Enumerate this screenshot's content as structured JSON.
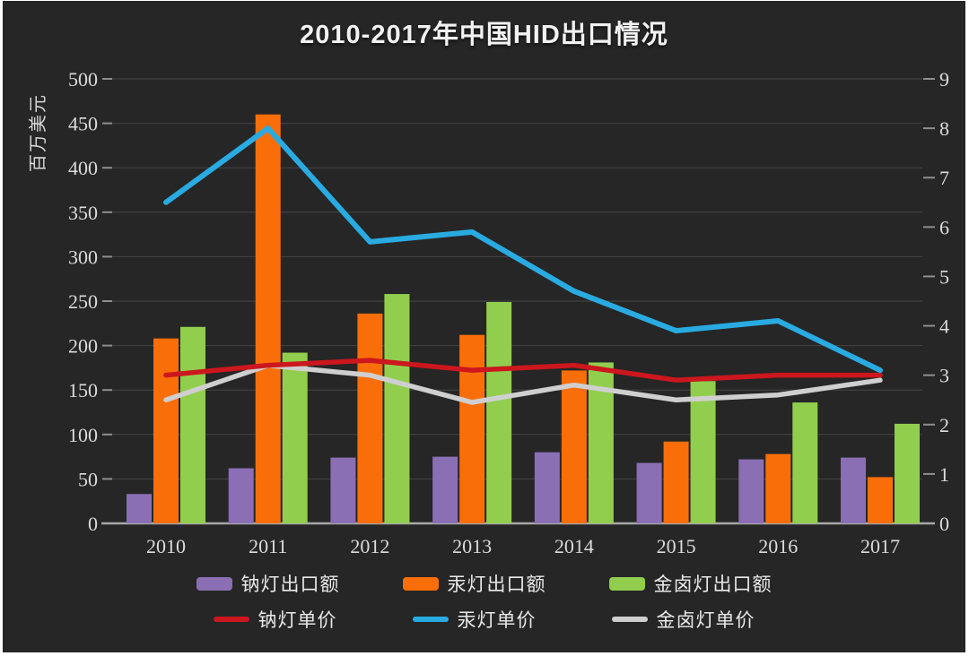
{
  "title": "2010-2017年中国HID出口情况",
  "colors": {
    "background": "#262626",
    "frame_border": "#ffffff",
    "gridline": "#454545",
    "axis_line": "#a8a8a8",
    "tick": "#8f8f8f",
    "text": "#dcdcdc"
  },
  "chart_data": {
    "type": "combo (grouped bars + lines)",
    "title": "2010-2017年中国HID出口情况",
    "categories": [
      "2010",
      "2011",
      "2012",
      "2013",
      "2014",
      "2015",
      "2016",
      "2017"
    ],
    "bar_series": [
      {
        "name": "钠灯出口额",
        "key": "sodium-export",
        "color": "#8A6FB5",
        "axis": "left",
        "values": [
          33,
          62,
          74,
          75,
          80,
          68,
          72,
          74
        ]
      },
      {
        "name": "汞灯出口额",
        "key": "mercury-export",
        "color": "#FA6E0A",
        "axis": "left",
        "values": [
          208,
          460,
          236,
          212,
          172,
          92,
          78,
          52
        ]
      },
      {
        "name": "金卤灯出口额",
        "key": "halide-export",
        "color": "#92CE4E",
        "axis": "left",
        "values": [
          221,
          192,
          258,
          249,
          181,
          160,
          136,
          112
        ]
      }
    ],
    "line_series": [
      {
        "name": "钠灯单价",
        "key": "sodium-price",
        "color": "#CB171D",
        "axis": "right",
        "values": [
          3.0,
          3.2,
          3.3,
          3.1,
          3.2,
          2.9,
          3.0,
          3.0
        ]
      },
      {
        "name": "汞灯单价",
        "key": "mercury-price",
        "color": "#29ABE2",
        "axis": "right",
        "values": [
          6.5,
          8.0,
          5.7,
          5.9,
          4.7,
          3.9,
          4.1,
          3.1
        ]
      },
      {
        "name": "金卤灯单价",
        "key": "halide-price",
        "color": "#CFCFCF",
        "axis": "right",
        "values": [
          2.5,
          3.2,
          3.0,
          2.45,
          2.8,
          2.5,
          2.6,
          2.9
        ]
      }
    ],
    "left_axis": {
      "label": "百万美元",
      "min": 0,
      "max": 500,
      "step": 50,
      "ticks": [
        0,
        50,
        100,
        150,
        200,
        250,
        300,
        350,
        400,
        450,
        500
      ]
    },
    "right_axis": {
      "label": "",
      "min": 0,
      "max": 9,
      "step": 1,
      "ticks": [
        0,
        1,
        2,
        3,
        4,
        5,
        6,
        7,
        8,
        9
      ]
    },
    "grid": true,
    "legend_position": "bottom"
  }
}
